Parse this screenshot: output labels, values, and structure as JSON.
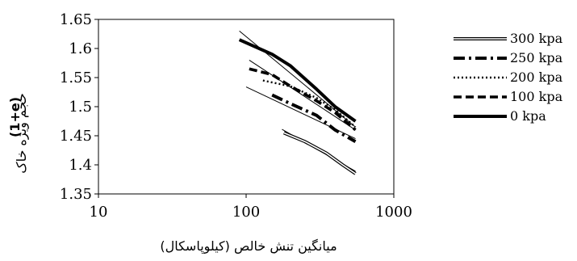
{
  "chart_data": {
    "type": "line",
    "xscale": "log",
    "xlim": [
      10,
      1000
    ],
    "ylim": [
      1.35,
      1.65
    ],
    "xticks": [
      10,
      100,
      1000
    ],
    "xtick_labels": [
      "10",
      "100",
      "1000"
    ],
    "yticks": [
      1.35,
      1.4,
      1.45,
      1.5,
      1.55,
      1.6,
      1.65
    ],
    "ytick_labels": [
      "1.35",
      "1.4",
      "1.45",
      "1.5",
      "1.55",
      "1.6",
      "1.65"
    ],
    "xlabel": "میانگین تنش خالص (کیلوپاسکال)",
    "ylabel_ltr": "(1+e)",
    "ylabel_rtl": "حجم ویژه خاک",
    "grid": false,
    "legend_position": "right",
    "series": [
      {
        "name": "300 kpa",
        "style": "double",
        "x": [
          180,
          250,
          350,
          450,
          550
        ],
        "y": [
          1.455,
          1.44,
          1.42,
          1.4,
          1.385
        ],
        "fit": {
          "x": [
            175,
            550
          ],
          "y": [
            1.461,
            1.389
          ]
        }
      },
      {
        "name": "250 kpa",
        "style": "dashdot",
        "x": [
          150,
          200,
          300,
          400,
          550
        ],
        "y": [
          1.52,
          1.505,
          1.485,
          1.46,
          1.44
        ],
        "fit": {
          "x": [
            100,
            550
          ],
          "y": [
            1.534,
            1.445
          ]
        }
      },
      {
        "name": "200 kpa",
        "style": "dotted",
        "x": [
          130,
          200,
          300,
          400,
          550
        ],
        "y": [
          1.545,
          1.535,
          1.515,
          1.495,
          1.465
        ],
        "fit": null
      },
      {
        "name": "100 kpa",
        "style": "dashed",
        "x": [
          105,
          150,
          200,
          300,
          400,
          550
        ],
        "y": [
          1.565,
          1.555,
          1.535,
          1.51,
          1.49,
          1.46
        ],
        "fit": {
          "x": [
            105,
            550
          ],
          "y": [
            1.58,
            1.46
          ]
        }
      },
      {
        "name": "0 kpa",
        "style": "solid",
        "x": [
          90,
          150,
          200,
          300,
          400,
          550
        ],
        "y": [
          1.615,
          1.59,
          1.57,
          1.53,
          1.5,
          1.475
        ],
        "fit": {
          "x": [
            90,
            550
          ],
          "y": [
            1.63,
            1.465
          ]
        }
      }
    ]
  }
}
